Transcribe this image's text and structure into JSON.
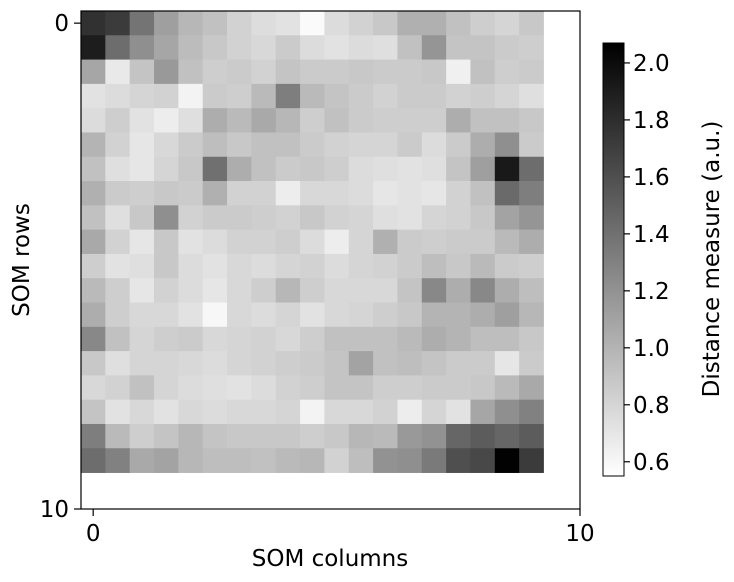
{
  "chart_data": {
    "type": "heatmap",
    "title": "",
    "xlabel": "SOM columns",
    "ylabel": "SOM rows",
    "xlim": [
      -0.25,
      10
    ],
    "ylim": [
      10,
      -0.25
    ],
    "x_ticks": [
      0,
      10
    ],
    "y_ticks": [
      0,
      10
    ],
    "cell_size": 0.5,
    "grid": false,
    "colormap": "gray_r",
    "colorbar": {
      "label": "Distance measure (a.u.)",
      "range": [
        0.55,
        2.07
      ],
      "ticks": [
        0.6,
        0.8,
        1.0,
        1.2,
        1.4,
        1.6,
        1.8,
        2.0
      ]
    },
    "values": [
      [
        1.78,
        1.72,
        1.38,
        1.12,
        0.98,
        0.92,
        0.82,
        0.75,
        0.72,
        0.58,
        0.76,
        0.82,
        0.88,
        1.02,
        1.02,
        0.92,
        0.84,
        0.8,
        0.88
      ],
      [
        1.9,
        1.42,
        1.22,
        1.08,
        0.95,
        0.88,
        0.82,
        0.78,
        0.86,
        0.76,
        0.72,
        0.76,
        0.74,
        0.92,
        1.18,
        0.9,
        0.9,
        0.86,
        0.84
      ],
      [
        1.08,
        0.68,
        0.9,
        1.16,
        0.92,
        0.84,
        0.86,
        0.82,
        0.9,
        0.86,
        0.86,
        0.88,
        0.86,
        0.86,
        0.88,
        0.64,
        0.92,
        0.84,
        0.86
      ],
      [
        0.72,
        0.76,
        0.8,
        0.82,
        0.62,
        0.86,
        0.84,
        0.96,
        1.32,
        0.96,
        0.9,
        0.86,
        0.82,
        0.86,
        0.86,
        0.82,
        0.84,
        0.8,
        0.74
      ],
      [
        0.76,
        0.84,
        0.72,
        0.66,
        0.74,
        1.04,
        0.96,
        1.06,
        0.98,
        0.84,
        0.92,
        0.86,
        0.84,
        0.84,
        0.84,
        1.04,
        0.92,
        0.92,
        0.88
      ],
      [
        1.0,
        0.82,
        0.7,
        0.78,
        0.86,
        0.94,
        0.88,
        0.92,
        0.92,
        0.86,
        0.82,
        0.8,
        0.8,
        0.86,
        0.76,
        0.86,
        1.04,
        1.22,
        0.86
      ],
      [
        0.92,
        0.74,
        0.7,
        0.8,
        0.88,
        1.4,
        1.04,
        0.92,
        0.86,
        0.88,
        0.84,
        0.76,
        0.74,
        0.72,
        0.74,
        0.9,
        1.12,
        1.92,
        1.42
      ],
      [
        1.02,
        0.86,
        0.84,
        0.88,
        0.86,
        1.02,
        0.82,
        0.82,
        0.66,
        0.78,
        0.78,
        0.76,
        0.7,
        0.72,
        0.7,
        0.82,
        0.92,
        1.44,
        1.32
      ],
      [
        0.92,
        0.74,
        0.88,
        1.22,
        0.82,
        0.86,
        0.86,
        0.84,
        0.82,
        0.88,
        0.82,
        0.8,
        0.74,
        0.72,
        0.8,
        0.82,
        0.88,
        1.1,
        1.18
      ],
      [
        1.06,
        0.82,
        0.7,
        0.88,
        0.72,
        0.76,
        0.82,
        0.82,
        0.84,
        0.76,
        0.66,
        0.8,
        1.02,
        0.86,
        0.84,
        0.86,
        0.86,
        0.96,
        1.04
      ],
      [
        0.84,
        0.72,
        0.74,
        0.88,
        0.76,
        0.72,
        0.78,
        0.76,
        0.8,
        0.82,
        0.76,
        0.8,
        0.82,
        0.86,
        0.94,
        0.88,
        0.96,
        0.86,
        0.84
      ],
      [
        0.96,
        0.84,
        0.7,
        0.82,
        0.76,
        0.7,
        0.78,
        0.84,
        0.98,
        0.84,
        0.78,
        0.78,
        0.78,
        0.9,
        1.26,
        1.04,
        1.26,
        1.04,
        0.94
      ],
      [
        1.04,
        0.84,
        0.78,
        0.78,
        0.72,
        0.6,
        0.78,
        0.76,
        0.8,
        0.72,
        0.78,
        0.8,
        0.84,
        0.88,
        1.0,
        1.0,
        1.04,
        1.12,
        0.98
      ],
      [
        1.26,
        0.92,
        0.8,
        0.84,
        0.86,
        0.78,
        0.8,
        0.82,
        0.78,
        0.84,
        0.92,
        0.92,
        0.92,
        0.96,
        1.04,
        1.0,
        0.94,
        0.94,
        0.88
      ],
      [
        0.88,
        0.74,
        0.8,
        0.8,
        0.78,
        0.76,
        0.8,
        0.82,
        0.84,
        0.86,
        0.9,
        1.1,
        0.92,
        0.94,
        0.9,
        0.86,
        0.86,
        0.7,
        0.86
      ],
      [
        0.78,
        0.82,
        0.92,
        0.8,
        0.76,
        0.74,
        0.72,
        0.76,
        0.82,
        0.84,
        0.9,
        0.9,
        0.84,
        0.84,
        0.86,
        0.86,
        0.88,
        0.96,
        1.06
      ],
      [
        0.9,
        0.72,
        0.78,
        0.72,
        0.78,
        0.76,
        0.78,
        0.78,
        0.8,
        0.62,
        0.78,
        0.78,
        0.82,
        0.66,
        0.8,
        0.72,
        1.08,
        1.22,
        1.3
      ],
      [
        1.32,
        0.96,
        0.84,
        0.9,
        0.98,
        0.9,
        0.88,
        0.88,
        0.88,
        0.84,
        0.88,
        0.98,
        0.96,
        1.16,
        1.2,
        1.46,
        1.52,
        1.46,
        1.52
      ],
      [
        1.42,
        1.3,
        1.06,
        1.1,
        0.98,
        0.94,
        0.94,
        0.92,
        0.96,
        0.98,
        0.82,
        0.94,
        1.2,
        1.22,
        1.34,
        1.6,
        1.64,
        2.06,
        1.72
      ]
    ]
  }
}
